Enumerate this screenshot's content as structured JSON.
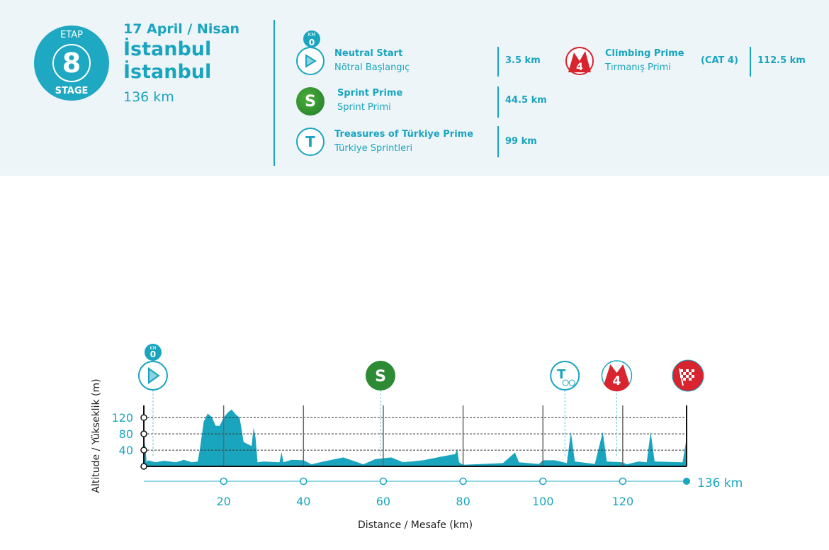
{
  "header": {
    "etap": "ETAP",
    "stage_number": "8",
    "stage": "STAGE",
    "date": "17 April / Nisan",
    "start_city": "İstanbul",
    "finish_city": "İstanbul",
    "distance": "136 km"
  },
  "legend": [
    {
      "name": "Neutral Start",
      "sub": "Nötral Başlangıç",
      "km": "3.5 km",
      "icon": "play-icon",
      "badge_top": "KM",
      "badge_num": "0"
    },
    {
      "name": "Sprint Prime",
      "sub": "Sprint Primi",
      "km": "44.5 km",
      "icon": "sprint-icon",
      "letter": "S"
    },
    {
      "name": "Treasures of Türkiye Prime",
      "sub": "Türkiye Sprintleri",
      "km": "99 km",
      "icon": "cyclist-icon",
      "letter": "T"
    },
    {
      "name": "Climbing Prime",
      "sub": "Tırmanış Primi",
      "cat": "(CAT 4)",
      "km": "112.5 km",
      "icon": "mountain-icon",
      "letter": "4"
    }
  ],
  "colors": {
    "teal": "#1aa5bf",
    "green": "#2e8b35",
    "red": "#d7242f",
    "bg": "#eef5f8"
  },
  "chart_data": {
    "type": "area",
    "title": "",
    "xlabel": "Distance / Mesafe  (km)",
    "ylabel": "Altitude / Yükseklik (m)",
    "xlim": [
      0,
      136
    ],
    "ylim": [
      0,
      150
    ],
    "xticks": [
      20,
      40,
      60,
      80,
      100,
      120
    ],
    "yticks": [
      40,
      80,
      120
    ],
    "end_label": "136 km",
    "grid": "horizontal dashed",
    "profile": [
      [
        0,
        5
      ],
      [
        0.3,
        60
      ],
      [
        0.7,
        10
      ],
      [
        1,
        15
      ],
      [
        3,
        10
      ],
      [
        5,
        14
      ],
      [
        8,
        10
      ],
      [
        10,
        16
      ],
      [
        12,
        10
      ],
      [
        13.5,
        12
      ],
      [
        14,
        40
      ],
      [
        15,
        110
      ],
      [
        16,
        130
      ],
      [
        17,
        122
      ],
      [
        18,
        100
      ],
      [
        19,
        100
      ],
      [
        20,
        120
      ],
      [
        21,
        132
      ],
      [
        22,
        140
      ],
      [
        23,
        128
      ],
      [
        24,
        120
      ],
      [
        25,
        60
      ],
      [
        26,
        55
      ],
      [
        27,
        50
      ],
      [
        27.5,
        95
      ],
      [
        28,
        70
      ],
      [
        28.5,
        10
      ],
      [
        30,
        12
      ],
      [
        34,
        10
      ],
      [
        34.5,
        35
      ],
      [
        35,
        10
      ],
      [
        37,
        16
      ],
      [
        40,
        15
      ],
      [
        42,
        5
      ],
      [
        45,
        12
      ],
      [
        50,
        22
      ],
      [
        55,
        5
      ],
      [
        58,
        18
      ],
      [
        62,
        22
      ],
      [
        65,
        10
      ],
      [
        70,
        15
      ],
      [
        75,
        25
      ],
      [
        78,
        30
      ],
      [
        78.5,
        42
      ],
      [
        79,
        10
      ],
      [
        80,
        4
      ],
      [
        85,
        6
      ],
      [
        90,
        8
      ],
      [
        93,
        34
      ],
      [
        94,
        10
      ],
      [
        99,
        6
      ],
      [
        100,
        15
      ],
      [
        103,
        15
      ],
      [
        106,
        8
      ],
      [
        107,
        85
      ],
      [
        108,
        12
      ],
      [
        113,
        6
      ],
      [
        115,
        85
      ],
      [
        116,
        12
      ],
      [
        120,
        10
      ],
      [
        121,
        5
      ],
      [
        124,
        12
      ],
      [
        126,
        10
      ],
      [
        127,
        85
      ],
      [
        128,
        12
      ],
      [
        135,
        10
      ],
      [
        136,
        70
      ]
    ],
    "markers": [
      {
        "name": "neutral-start",
        "km": 2.3,
        "badge_top": "KM",
        "badge_num": "0"
      },
      {
        "name": "sprint",
        "km": 59.3,
        "letter": "S"
      },
      {
        "name": "treasures",
        "km": 105.5,
        "letter": "T"
      },
      {
        "name": "climb",
        "km": 118.5,
        "letter": "4"
      },
      {
        "name": "finish",
        "km": 136
      }
    ]
  }
}
